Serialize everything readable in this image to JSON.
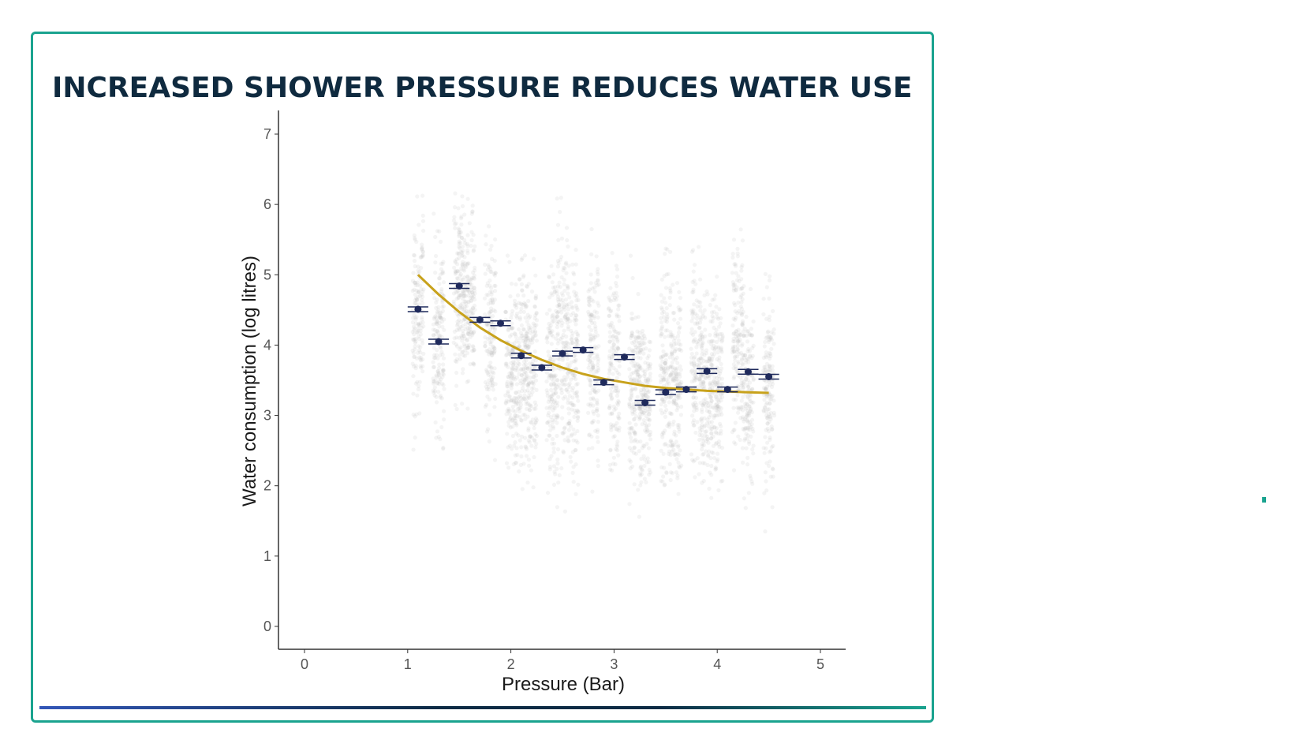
{
  "slide": {
    "title": "INCREASED SHOWER PRESSURE REDUCES WATER USE",
    "accent_color": "#1aa38f",
    "title_color": "#0f2a3f"
  },
  "chart_data": {
    "type": "scatter",
    "xlabel": "Pressure (Bar)",
    "ylabel": "Water consumption (log litres)",
    "xlim": [
      -0.25,
      5.25
    ],
    "ylim": [
      -0.35,
      7.35
    ],
    "x_ticks": [
      "0",
      "1",
      "2",
      "3",
      "4",
      "5"
    ],
    "y_ticks": [
      "0",
      "1",
      "2",
      "3",
      "4",
      "5",
      "6",
      "7"
    ],
    "grid": false,
    "series": [
      {
        "kind": "raw_observations",
        "color": "#b8b8b8",
        "columns": [
          {
            "x": 1.1,
            "y_min": 2.4,
            "y_max": 6.3
          },
          {
            "x": 1.3,
            "y_min": 2.2,
            "y_max": 6.0
          },
          {
            "x": 1.5,
            "y_min": 2.8,
            "y_max": 6.7
          },
          {
            "x": 1.6,
            "y_min": 2.9,
            "y_max": 6.3
          },
          {
            "x": 1.8,
            "y_min": 2.2,
            "y_max": 6.2
          },
          {
            "x": 2.0,
            "y_min": 1.8,
            "y_max": 5.4
          },
          {
            "x": 2.1,
            "y_min": 1.5,
            "y_max": 6.0
          },
          {
            "x": 2.2,
            "y_min": 1.5,
            "y_max": 5.7
          },
          {
            "x": 2.4,
            "y_min": 1.5,
            "y_max": 5.7
          },
          {
            "x": 2.5,
            "y_min": 1.4,
            "y_max": 6.8
          },
          {
            "x": 2.6,
            "y_min": 1.5,
            "y_max": 6.0
          },
          {
            "x": 2.8,
            "y_min": 1.8,
            "y_max": 5.9
          },
          {
            "x": 3.0,
            "y_min": 1.5,
            "y_max": 5.8
          },
          {
            "x": 3.2,
            "y_min": 1.4,
            "y_max": 5.4
          },
          {
            "x": 3.3,
            "y_min": 1.7,
            "y_max": 4.9
          },
          {
            "x": 3.5,
            "y_min": 1.2,
            "y_max": 5.8
          },
          {
            "x": 3.6,
            "y_min": 1.4,
            "y_max": 5.5
          },
          {
            "x": 3.8,
            "y_min": 1.6,
            "y_max": 5.8
          },
          {
            "x": 3.9,
            "y_min": 1.4,
            "y_max": 5.3
          },
          {
            "x": 4.0,
            "y_min": 1.7,
            "y_max": 5.1
          },
          {
            "x": 4.2,
            "y_min": 1.9,
            "y_max": 6.2
          },
          {
            "x": 4.3,
            "y_min": 1.5,
            "y_max": 5.0
          },
          {
            "x": 4.5,
            "y_min": 1.3,
            "y_max": 5.5
          }
        ]
      },
      {
        "kind": "mean_with_error",
        "color": "#1f2a5c",
        "points": [
          {
            "x": 1.1,
            "y": 4.51
          },
          {
            "x": 1.3,
            "y": 4.05
          },
          {
            "x": 1.5,
            "y": 4.84
          },
          {
            "x": 1.7,
            "y": 4.36
          },
          {
            "x": 1.9,
            "y": 4.31
          },
          {
            "x": 2.1,
            "y": 3.85
          },
          {
            "x": 2.3,
            "y": 3.68
          },
          {
            "x": 2.5,
            "y": 3.88
          },
          {
            "x": 2.7,
            "y": 3.93
          },
          {
            "x": 2.9,
            "y": 3.47
          },
          {
            "x": 3.1,
            "y": 3.83
          },
          {
            "x": 3.3,
            "y": 3.18
          },
          {
            "x": 3.5,
            "y": 3.33
          },
          {
            "x": 3.7,
            "y": 3.37
          },
          {
            "x": 3.9,
            "y": 3.63
          },
          {
            "x": 4.1,
            "y": 3.37
          },
          {
            "x": 4.3,
            "y": 3.62
          },
          {
            "x": 4.5,
            "y": 3.55
          }
        ],
        "error_half_width": 0.1
      },
      {
        "kind": "fitted_curve",
        "color": "#c8a21c",
        "points": [
          {
            "x": 1.1,
            "y": 5.0
          },
          {
            "x": 1.3,
            "y": 4.72
          },
          {
            "x": 1.5,
            "y": 4.47
          },
          {
            "x": 1.7,
            "y": 4.25
          },
          {
            "x": 1.9,
            "y": 4.07
          },
          {
            "x": 2.1,
            "y": 3.92
          },
          {
            "x": 2.3,
            "y": 3.79
          },
          {
            "x": 2.5,
            "y": 3.68
          },
          {
            "x": 2.7,
            "y": 3.59
          },
          {
            "x": 2.9,
            "y": 3.52
          },
          {
            "x": 3.1,
            "y": 3.47
          },
          {
            "x": 3.3,
            "y": 3.42
          },
          {
            "x": 3.5,
            "y": 3.39
          },
          {
            "x": 3.7,
            "y": 3.37
          },
          {
            "x": 3.9,
            "y": 3.35
          },
          {
            "x": 4.1,
            "y": 3.34
          },
          {
            "x": 4.3,
            "y": 3.33
          },
          {
            "x": 4.5,
            "y": 3.32
          }
        ]
      }
    ]
  }
}
